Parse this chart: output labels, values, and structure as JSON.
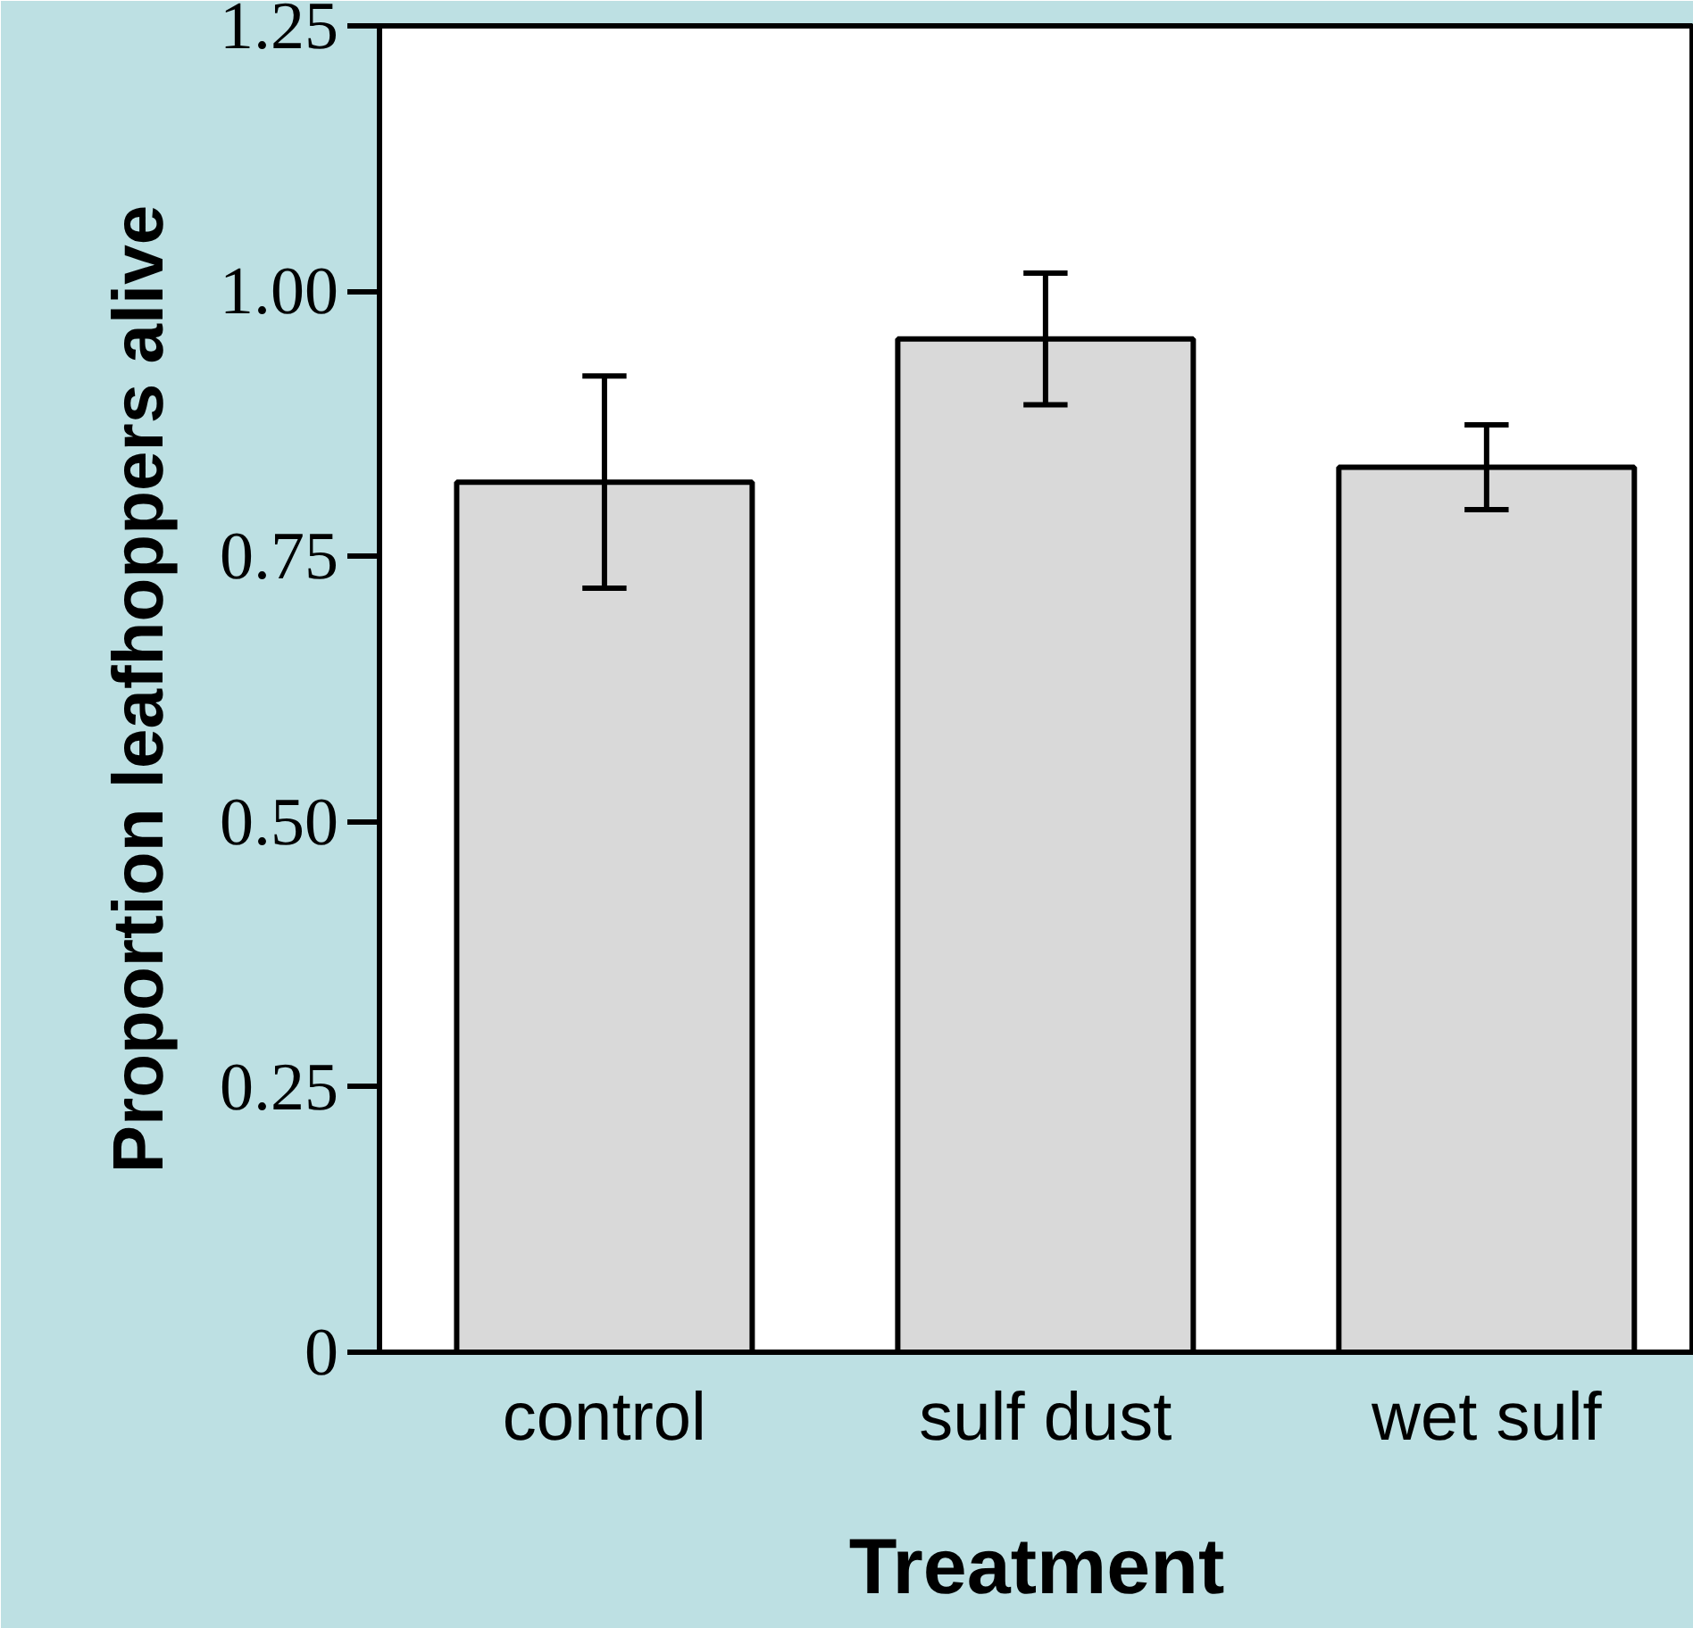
{
  "chart_data": {
    "type": "bar",
    "xlabel": "Treatment",
    "ylabel": "Proportion leafhoppers alive",
    "categories": [
      "control",
      "sulf dust",
      "wet sulf"
    ],
    "values": [
      0.82,
      0.955,
      0.834
    ],
    "errors": [
      0.1,
      0.062,
      0.04
    ],
    "color": "#d9d9d9",
    "ylim": [
      0,
      1.25
    ],
    "yticks": [
      0,
      0.25,
      {
        "value": 0.5,
        "label": "0.50"
      },
      0.75,
      {
        "value": 1.0,
        "label": "1.00"
      },
      1.25
    ],
    "grid": false
  }
}
